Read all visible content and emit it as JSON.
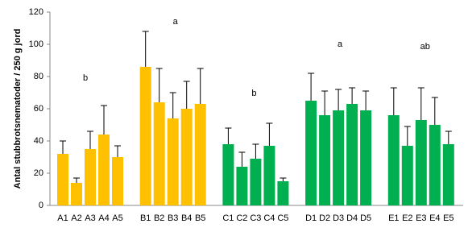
{
  "chart_data": {
    "type": "bar",
    "y_label": "Antal stubbrotsnematoder / 250 g jord",
    "categories": [
      "A1",
      "A2",
      "A3",
      "A4",
      "A5",
      "B1",
      "B2",
      "B3",
      "B4",
      "B5",
      "C1",
      "C2",
      "C3",
      "C4",
      "C5",
      "D1",
      "D2",
      "D3",
      "D4",
      "D5",
      "E1",
      "E2",
      "E3",
      "E4",
      "E5"
    ],
    "values": [
      32,
      14,
      35,
      44,
      30,
      86,
      64,
      54,
      60,
      63,
      38,
      24,
      29,
      37,
      15,
      65,
      56,
      59,
      63,
      59,
      56,
      37,
      53,
      50,
      38
    ],
    "errors": [
      8,
      3,
      11,
      18,
      7,
      22,
      21,
      16,
      17,
      22,
      10,
      9,
      9,
      14,
      2,
      17,
      15,
      13,
      10,
      12,
      17,
      12,
      20,
      17,
      8
    ],
    "colors": [
      "#ffc000",
      "#ffc000",
      "#ffc000",
      "#ffc000",
      "#ffc000",
      "#ffc000",
      "#ffc000",
      "#ffc000",
      "#ffc000",
      "#ffc000",
      "#00b050",
      "#00b050",
      "#00b050",
      "#00b050",
      "#00b050",
      "#00b050",
      "#00b050",
      "#00b050",
      "#00b050",
      "#00b050",
      "#00b050",
      "#00b050",
      "#00b050",
      "#00b050",
      "#00b050"
    ],
    "annotations": [
      "b",
      "a",
      "b",
      "a",
      "ab"
    ],
    "ylim": [
      0,
      120
    ],
    "yticks": [
      0,
      20,
      40,
      60,
      80,
      100,
      120
    ],
    "grid": false
  }
}
